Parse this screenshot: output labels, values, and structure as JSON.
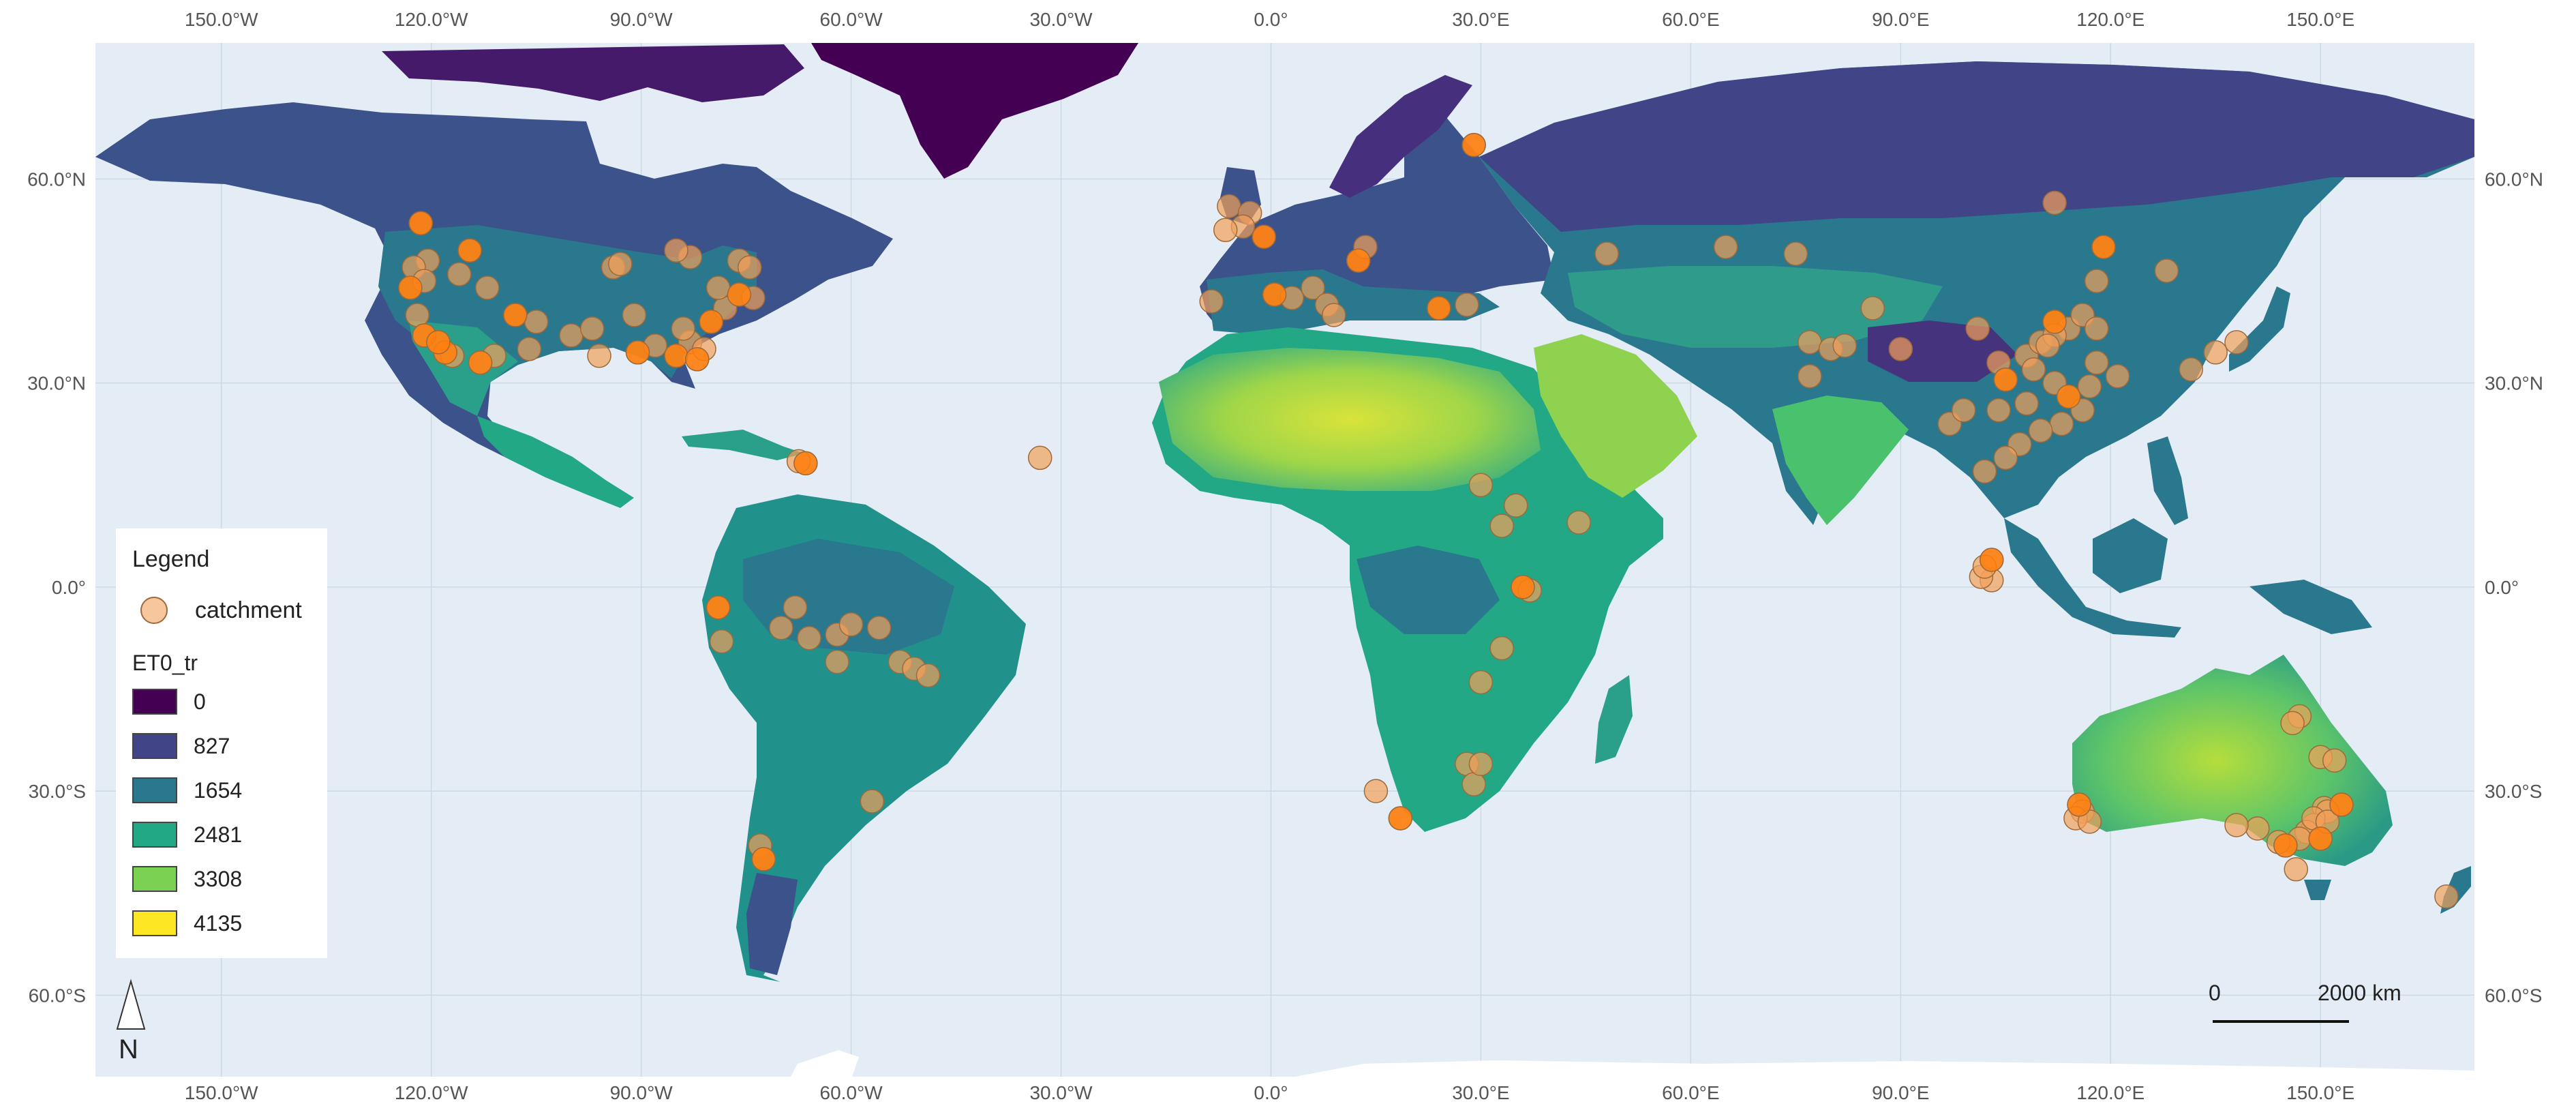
{
  "legend": {
    "title": "Legend",
    "point_label": "catchment",
    "raster_title": "ET0_tr",
    "classes": [
      {
        "label": "0",
        "color": "#440154"
      },
      {
        "label": "827",
        "color": "#414487"
      },
      {
        "label": "1654",
        "color": "#2a788e"
      },
      {
        "label": "2481",
        "color": "#22a884"
      },
      {
        "label": "3308",
        "color": "#7ad151"
      },
      {
        "label": "4135",
        "color": "#fde725"
      }
    ]
  },
  "longitude_ticks": [
    "150.0°W",
    "120.0°W",
    "90.0°W",
    "60.0°W",
    "30.0°W",
    "0.0°",
    "30.0°E",
    "60.0°E",
    "90.0°E",
    "120.0°E",
    "150.0°E"
  ],
  "latitude_ticks": [
    "60.0°N",
    "30.0°N",
    "0.0°",
    "30.0°S",
    "60.0°S"
  ],
  "north_arrow": {
    "letter": "N"
  },
  "scale_bar": {
    "start": "0",
    "end": "2000 km"
  },
  "colors": {
    "ocean": "#e4edf5",
    "graticule": "#cdd8e3",
    "point_fill": "#f2a05a",
    "point_strong": "#ff7f0e",
    "point_stroke": "#9c6a3c"
  },
  "map_data": {
    "lon_range": [
      -168,
      172
    ],
    "lat_range": [
      -72,
      80
    ],
    "catchments": [
      [
        -121.5,
        53.5
      ],
      [
        -120.5,
        48
      ],
      [
        -123,
        44
      ],
      [
        -122,
        40
      ],
      [
        -121,
        37
      ],
      [
        -118,
        34.5
      ],
      [
        -116,
        46
      ],
      [
        -112,
        44
      ],
      [
        -114.5,
        49.5
      ],
      [
        -108,
        40
      ],
      [
        -105,
        39
      ],
      [
        -106,
        35
      ],
      [
        -100,
        37
      ],
      [
        -96,
        34
      ],
      [
        -94,
        47
      ],
      [
        -90.5,
        34.5
      ],
      [
        -88,
        35.5
      ],
      [
        -85,
        34
      ],
      [
        -82,
        33.5
      ],
      [
        -83,
        36
      ],
      [
        -80,
        39
      ],
      [
        -78,
        41
      ],
      [
        -76,
        43
      ],
      [
        -74,
        42.5
      ],
      [
        -79,
        44
      ],
      [
        -76,
        48
      ],
      [
        -83,
        48.5
      ],
      [
        -85,
        49.5
      ],
      [
        -93,
        47.5
      ],
      [
        -119,
        36
      ],
      [
        -117,
        34
      ],
      [
        -111,
        34
      ],
      [
        -122.5,
        47
      ],
      [
        -121,
        45
      ],
      [
        -113,
        33
      ],
      [
        -97,
        38
      ],
      [
        -91,
        40
      ],
      [
        -84,
        38
      ],
      [
        -74.5,
        47
      ],
      [
        -81,
        35
      ],
      [
        -66.5,
        18.2
      ],
      [
        -67.5,
        18.5
      ],
      [
        -79,
        -3
      ],
      [
        -78.5,
        -8
      ],
      [
        -68,
        -3
      ],
      [
        -70,
        -6
      ],
      [
        -66,
        -7.5
      ],
      [
        -62,
        -7
      ],
      [
        -60,
        -5.5
      ],
      [
        -56,
        -6
      ],
      [
        -53,
        -11
      ],
      [
        -51,
        -12
      ],
      [
        -49,
        -13
      ],
      [
        -62,
        -11
      ],
      [
        -57,
        -31.5
      ],
      [
        -73,
        -38
      ],
      [
        -72.5,
        -40
      ],
      [
        -6,
        56
      ],
      [
        -3,
        55
      ],
      [
        -4,
        53
      ],
      [
        -1,
        51.5
      ],
      [
        -6.5,
        52.5
      ],
      [
        -8.5,
        42
      ],
      [
        0.5,
        43
      ],
      [
        3,
        42.5
      ],
      [
        6,
        44
      ],
      [
        8,
        41.5
      ],
      [
        9,
        40
      ],
      [
        12.5,
        48
      ],
      [
        13.5,
        50
      ],
      [
        24,
        41
      ],
      [
        28,
        41.5
      ],
      [
        48,
        49
      ],
      [
        65,
        50
      ],
      [
        75,
        49
      ],
      [
        29,
        65
      ],
      [
        77,
        36
      ],
      [
        86,
        41
      ],
      [
        80,
        35
      ],
      [
        82,
        35.5
      ],
      [
        90,
        35
      ],
      [
        77,
        31
      ],
      [
        101,
        38
      ],
      [
        104,
        33
      ],
      [
        105,
        30.5
      ],
      [
        108,
        34
      ],
      [
        110,
        36
      ],
      [
        112,
        39
      ],
      [
        114,
        38
      ],
      [
        116,
        40
      ],
      [
        118,
        38
      ],
      [
        112,
        37
      ],
      [
        111,
        35.5
      ],
      [
        109,
        32
      ],
      [
        112,
        30
      ],
      [
        114,
        28
      ],
      [
        116,
        26
      ],
      [
        113,
        24
      ],
      [
        110,
        23
      ],
      [
        107,
        21
      ],
      [
        105,
        19
      ],
      [
        102,
        17
      ],
      [
        97,
        24
      ],
      [
        99,
        26
      ],
      [
        104,
        26
      ],
      [
        108,
        27
      ],
      [
        118,
        45
      ],
      [
        119,
        50
      ],
      [
        128,
        46.5
      ],
      [
        112,
        56.5
      ],
      [
        121,
        31
      ],
      [
        118,
        33
      ],
      [
        117,
        29.5
      ],
      [
        131.5,
        32
      ],
      [
        135,
        34.5
      ],
      [
        138,
        36
      ],
      [
        103,
        4
      ],
      [
        103,
        1
      ],
      [
        101.5,
        1.5
      ],
      [
        102,
        3
      ],
      [
        -33,
        19
      ],
      [
        18.5,
        -34
      ],
      [
        28,
        -26
      ],
      [
        29,
        -29
      ],
      [
        30,
        -26
      ],
      [
        30,
        -14
      ],
      [
        33,
        -9
      ],
      [
        36,
        0
      ],
      [
        37,
        -0.5
      ],
      [
        33,
        9
      ],
      [
        35,
        12
      ],
      [
        30,
        15
      ],
      [
        44,
        9.5
      ],
      [
        15,
        -30
      ],
      [
        147,
        -19
      ],
      [
        146,
        -20
      ],
      [
        150,
        -25
      ],
      [
        152,
        -25.5
      ],
      [
        153,
        -32
      ],
      [
        150.5,
        -32.5
      ],
      [
        151,
        -33
      ],
      [
        149,
        -35
      ],
      [
        148,
        -36
      ],
      [
        147,
        -37
      ],
      [
        150,
        -37
      ],
      [
        145,
        -38
      ],
      [
        144,
        -37.5
      ],
      [
        141,
        -35.5
      ],
      [
        138,
        -35
      ],
      [
        115.5,
        -32
      ],
      [
        116,
        -33
      ],
      [
        115,
        -34
      ],
      [
        117,
        -34.5
      ],
      [
        149,
        -34
      ],
      [
        151,
        -34.5
      ],
      [
        168,
        -45.5
      ],
      [
        146.5,
        -41.5
      ]
    ],
    "strong_catchments": [
      [
        -123,
        44
      ],
      [
        -121,
        37
      ],
      [
        -118,
        34.5
      ],
      [
        -108,
        40
      ],
      [
        -90.5,
        34.5
      ],
      [
        -85,
        34
      ],
      [
        -82,
        33.5
      ],
      [
        -80,
        39
      ],
      [
        -76,
        43
      ],
      [
        -114.5,
        49.5
      ],
      [
        -66.5,
        18.2
      ],
      [
        -79,
        -3
      ],
      [
        -72.5,
        -40
      ],
      [
        -1,
        51.5
      ],
      [
        0.5,
        43
      ],
      [
        12.5,
        48
      ],
      [
        24,
        41
      ],
      [
        29,
        65
      ],
      [
        105,
        30.5
      ],
      [
        112,
        39
      ],
      [
        114,
        28
      ],
      [
        119,
        50
      ],
      [
        103,
        4
      ],
      [
        36,
        0
      ],
      [
        18.5,
        -34
      ],
      [
        153,
        -32
      ],
      [
        150,
        -37
      ],
      [
        145,
        -38
      ],
      [
        115.5,
        -32
      ],
      [
        -121.5,
        53.5
      ],
      [
        -119,
        36
      ],
      [
        -113,
        33
      ]
    ]
  }
}
